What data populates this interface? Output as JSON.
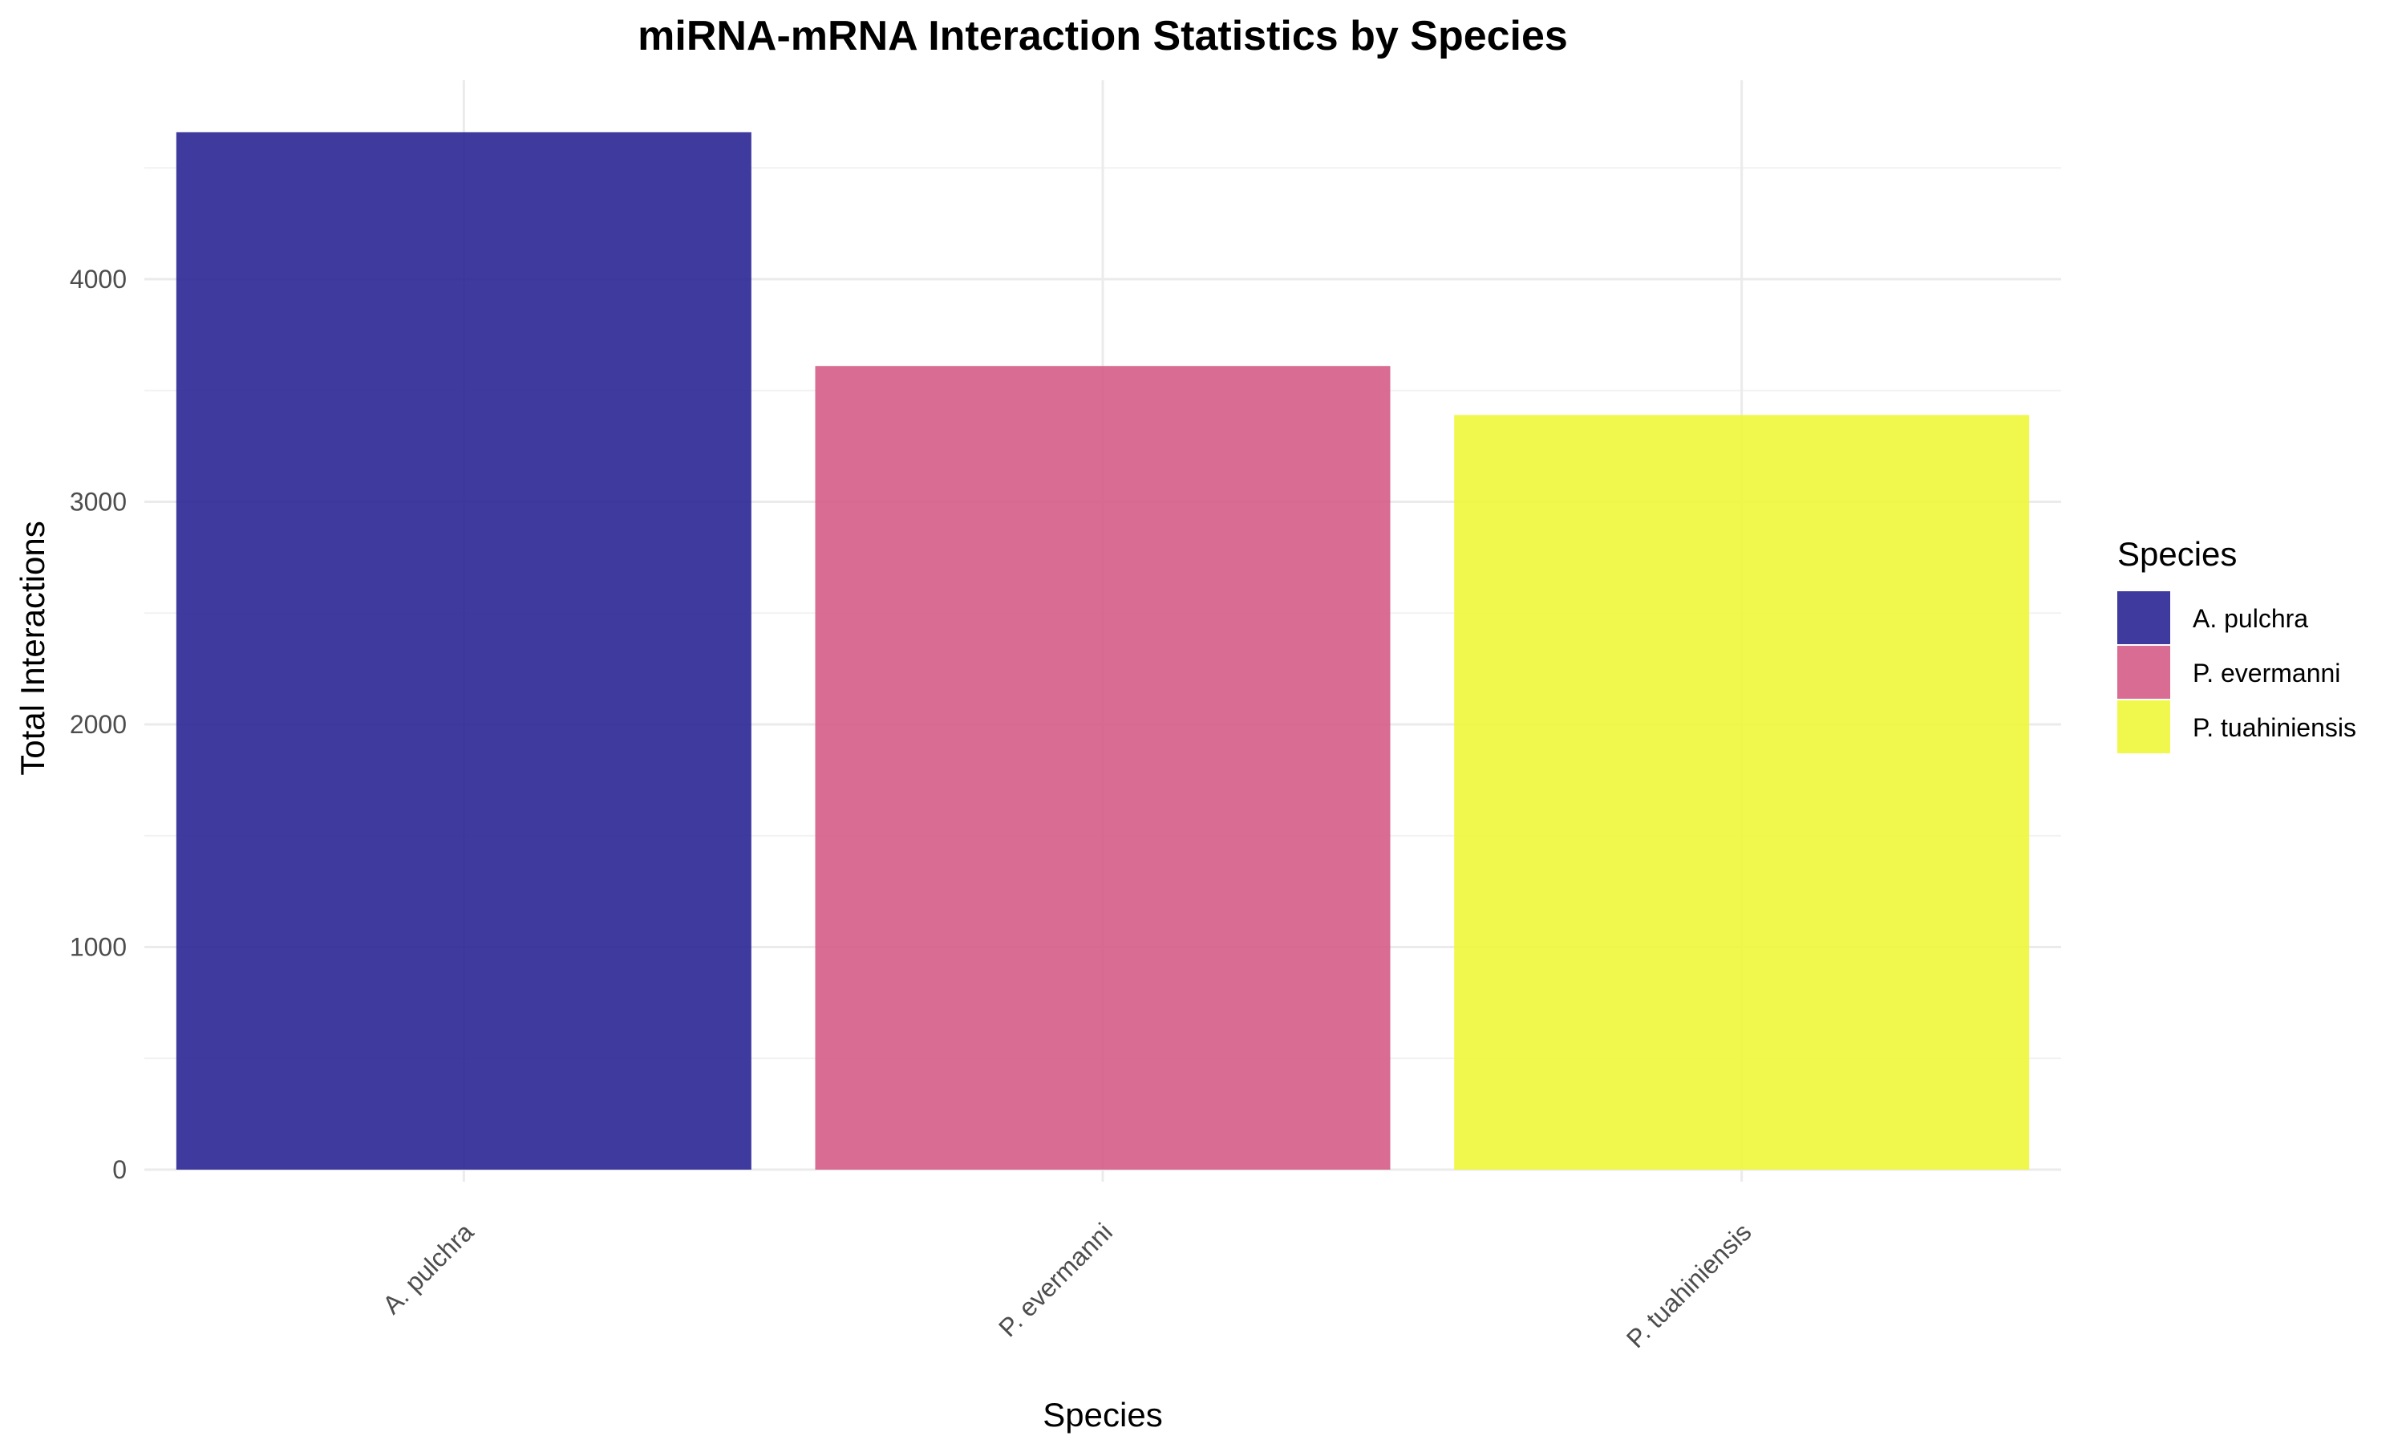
{
  "chart_data": {
    "type": "bar",
    "title": "miRNA-mRNA Interaction Statistics by Species",
    "xlabel": "Species",
    "ylabel": "Total Interactions",
    "categories": [
      "A. pulchra",
      "P. evermanni",
      "P. tuahiniensis"
    ],
    "values": [
      4660,
      3610,
      3390
    ],
    "colors": [
      "#2a2593",
      "#d45c86",
      "#f0f73a"
    ],
    "ylim": [
      0,
      4900
    ],
    "yticks": [
      0,
      1000,
      2000,
      3000,
      4000
    ],
    "ytick_labels": [
      "0",
      "1000",
      "2000",
      "3000",
      "4000"
    ],
    "grid": true,
    "legend": {
      "title": "Species",
      "placement": "right",
      "entries": [
        "A. pulchra",
        "P. evermanni",
        "P. tuahiniensis"
      ]
    }
  }
}
